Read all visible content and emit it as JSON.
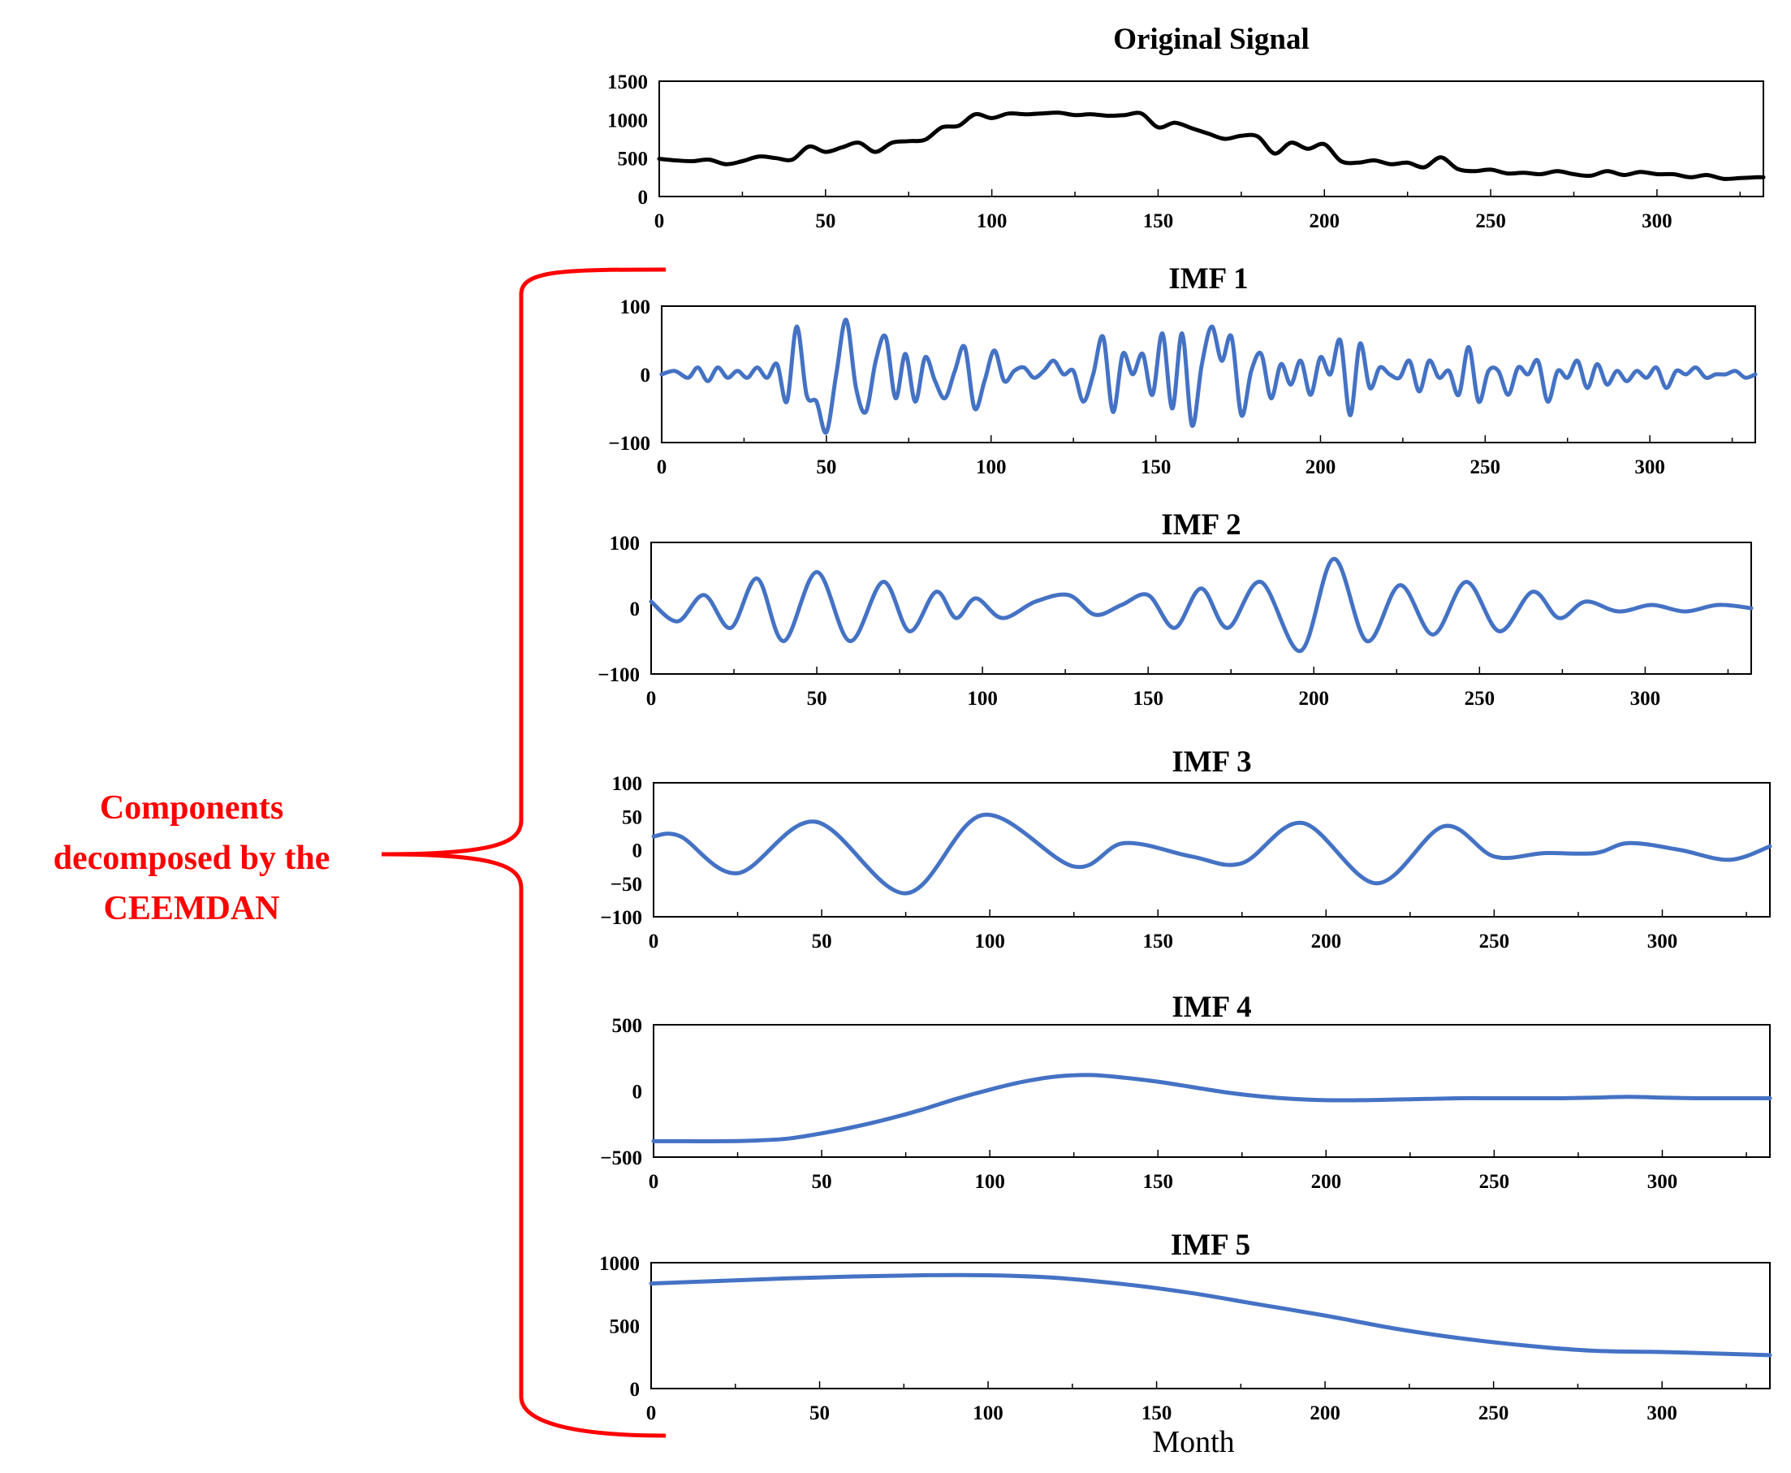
{
  "colors": {
    "original_line": "#000000",
    "imf_line": "#4472c4",
    "annotation": "#ff0000",
    "axes": "#000000"
  },
  "annotation": {
    "lines": [
      "Components",
      "decomposed by the",
      "CEEMDAN"
    ]
  },
  "x_axis_label": "Month",
  "chart_data": [
    {
      "type": "line",
      "title": "Original Signal",
      "xlim": [
        0,
        332
      ],
      "ylim": [
        0,
        1500
      ],
      "xticks": [
        0,
        50,
        100,
        150,
        200,
        250,
        300
      ],
      "yticks": [
        0,
        500,
        1000,
        1500
      ],
      "x": [
        0,
        5,
        10,
        15,
        20,
        25,
        30,
        35,
        40,
        45,
        50,
        55,
        60,
        65,
        70,
        75,
        80,
        85,
        90,
        95,
        100,
        105,
        110,
        115,
        120,
        125,
        130,
        135,
        140,
        145,
        150,
        155,
        160,
        165,
        170,
        175,
        180,
        185,
        190,
        195,
        200,
        205,
        210,
        215,
        220,
        225,
        230,
        235,
        240,
        245,
        250,
        255,
        260,
        265,
        270,
        275,
        280,
        285,
        290,
        295,
        300,
        305,
        310,
        315,
        320,
        325,
        330,
        332
      ],
      "values": [
        490,
        470,
        460,
        480,
        420,
        460,
        520,
        500,
        480,
        650,
        580,
        640,
        700,
        580,
        700,
        720,
        740,
        900,
        920,
        1070,
        1020,
        1080,
        1070,
        1080,
        1090,
        1060,
        1070,
        1050,
        1060,
        1080,
        900,
        960,
        890,
        820,
        750,
        790,
        780,
        560,
        700,
        620,
        680,
        460,
        440,
        470,
        420,
        440,
        380,
        510,
        360,
        330,
        350,
        300,
        310,
        290,
        330,
        290,
        270,
        330,
        280,
        320,
        290,
        290,
        250,
        280,
        230,
        240,
        250,
        250
      ]
    },
    {
      "type": "line",
      "title": "IMF 1",
      "xlim": [
        0,
        332
      ],
      "ylim": [
        -100,
        100
      ],
      "xticks": [
        0,
        50,
        100,
        150,
        200,
        250,
        300
      ],
      "yticks": [
        -100,
        0,
        100
      ],
      "x": [
        0,
        4,
        8,
        11,
        14,
        17,
        20,
        23,
        26,
        29,
        32,
        35,
        38,
        41,
        44,
        47,
        50,
        53,
        56,
        59,
        62,
        65,
        68,
        71,
        74,
        77,
        80,
        83,
        86,
        89,
        92,
        95,
        98,
        101,
        104,
        107,
        110,
        113,
        116,
        119,
        122,
        125,
        128,
        131,
        134,
        137,
        140,
        143,
        146,
        149,
        152,
        155,
        158,
        161,
        164,
        167,
        170,
        173,
        176,
        179,
        182,
        185,
        188,
        191,
        194,
        197,
        200,
        203,
        206,
        209,
        212,
        215,
        218,
        221,
        224,
        227,
        230,
        233,
        236,
        239,
        242,
        245,
        248,
        251,
        254,
        257,
        260,
        263,
        266,
        269,
        272,
        275,
        278,
        281,
        284,
        287,
        290,
        293,
        296,
        299,
        302,
        305,
        308,
        311,
        314,
        317,
        320,
        323,
        326,
        329,
        332
      ],
      "values": [
        0,
        5,
        -5,
        10,
        -10,
        10,
        -5,
        5,
        -5,
        10,
        -5,
        15,
        -40,
        70,
        -30,
        -40,
        -85,
        0,
        80,
        -20,
        -55,
        20,
        55,
        -35,
        30,
        -40,
        25,
        -10,
        -35,
        5,
        40,
        -50,
        -10,
        35,
        -10,
        5,
        10,
        -5,
        5,
        20,
        0,
        5,
        -40,
        0,
        55,
        -55,
        30,
        0,
        30,
        -30,
        60,
        -50,
        60,
        -75,
        15,
        70,
        20,
        55,
        -60,
        5,
        30,
        -35,
        15,
        -15,
        20,
        -30,
        25,
        0,
        50,
        -60,
        45,
        -20,
        10,
        0,
        -5,
        20,
        -25,
        20,
        -5,
        5,
        -30,
        40,
        -40,
        5,
        5,
        -30,
        10,
        0,
        20,
        -40,
        5,
        -5,
        20,
        -20,
        15,
        -15,
        5,
        -10,
        5,
        -5,
        10,
        -20,
        5,
        0,
        10,
        -5,
        0,
        0,
        5,
        -5,
        0
      ],
      "series_color": "imf"
    },
    {
      "type": "line",
      "title": "IMF 2",
      "xlim": [
        0,
        332
      ],
      "ylim": [
        -100,
        100
      ],
      "xticks": [
        0,
        50,
        100,
        150,
        200,
        250,
        300
      ],
      "yticks": [
        -100,
        0,
        100
      ],
      "x": [
        0,
        8,
        16,
        24,
        32,
        40,
        50,
        60,
        70,
        78,
        86,
        92,
        98,
        106,
        116,
        126,
        134,
        142,
        150,
        158,
        166,
        174,
        184,
        196,
        206,
        216,
        226,
        236,
        246,
        256,
        266,
        274,
        282,
        292,
        302,
        312,
        322,
        332
      ],
      "values": [
        10,
        -20,
        20,
        -30,
        45,
        -50,
        55,
        -50,
        40,
        -35,
        25,
        -15,
        15,
        -15,
        10,
        20,
        -10,
        5,
        20,
        -30,
        30,
        -30,
        40,
        -65,
        75,
        -50,
        35,
        -40,
        40,
        -35,
        25,
        -15,
        10,
        -5,
        5,
        -5,
        5,
        0
      ],
      "series_color": "imf"
    },
    {
      "type": "line",
      "title": "IMF 3",
      "xlim": [
        0,
        332
      ],
      "ylim": [
        -100,
        100
      ],
      "xticks": [
        0,
        50,
        100,
        150,
        200,
        250,
        300
      ],
      "yticks": [
        -100,
        -50,
        0,
        50,
        100
      ],
      "x": [
        0,
        8,
        25,
        48,
        75,
        98,
        125,
        140,
        160,
        175,
        193,
        215,
        235,
        250,
        265,
        280,
        290,
        305,
        320,
        332
      ],
      "values": [
        20,
        20,
        -35,
        42,
        -65,
        52,
        -25,
        10,
        -10,
        -20,
        40,
        -50,
        35,
        -10,
        -5,
        -5,
        10,
        0,
        -15,
        5
      ],
      "series_color": "imf"
    },
    {
      "type": "line",
      "title": "IMF 4",
      "xlim": [
        0,
        332
      ],
      "ylim": [
        -500,
        500
      ],
      "xticks": [
        0,
        50,
        100,
        150,
        200,
        250,
        300
      ],
      "yticks": [
        -500,
        0,
        500
      ],
      "x": [
        0,
        10,
        20,
        30,
        40,
        50,
        60,
        70,
        80,
        90,
        100,
        110,
        120,
        130,
        140,
        150,
        160,
        170,
        180,
        190,
        200,
        210,
        220,
        230,
        240,
        250,
        260,
        270,
        280,
        290,
        300,
        310,
        320,
        332
      ],
      "values": [
        -380,
        -380,
        -380,
        -375,
        -360,
        -320,
        -270,
        -210,
        -140,
        -60,
        10,
        70,
        110,
        120,
        100,
        70,
        30,
        -10,
        -40,
        -60,
        -70,
        -70,
        -65,
        -60,
        -55,
        -55,
        -55,
        -55,
        -50,
        -45,
        -50,
        -55,
        -55,
        -55
      ],
      "series_color": "imf"
    },
    {
      "type": "line",
      "title": "IMF 5",
      "xlim": [
        0,
        332
      ],
      "ylim": [
        0,
        1000
      ],
      "xticks": [
        0,
        50,
        100,
        150,
        200,
        250,
        300
      ],
      "yticks": [
        0,
        500,
        1000
      ],
      "x": [
        0,
        20,
        40,
        60,
        80,
        100,
        120,
        140,
        160,
        180,
        200,
        220,
        240,
        260,
        280,
        300,
        320,
        332
      ],
      "values": [
        835,
        855,
        875,
        890,
        900,
        900,
        880,
        830,
        760,
        670,
        580,
        480,
        400,
        340,
        300,
        290,
        275,
        265
      ],
      "series_color": "imf"
    }
  ]
}
